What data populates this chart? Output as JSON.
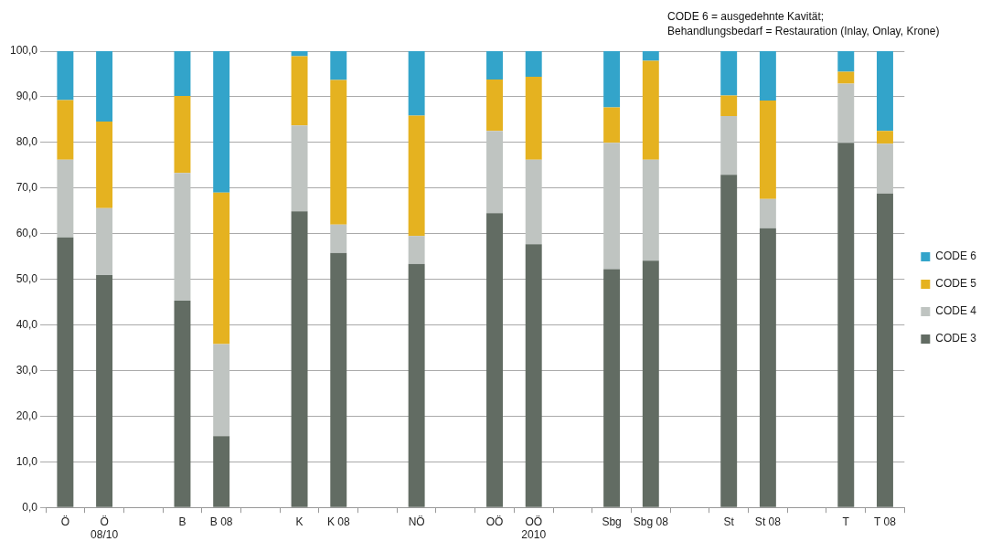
{
  "chart_data": {
    "type": "bar",
    "stacked": true,
    "categories": [
      "Ö",
      "Ö\n08/10",
      null,
      "B",
      "B 08",
      null,
      "K",
      "K 08",
      null,
      "NÖ",
      null,
      "OÖ",
      "OÖ\n2010",
      null,
      "Sbg",
      "Sbg 08",
      null,
      "St",
      "St 08",
      null,
      "T",
      "T 08"
    ],
    "series": [
      {
        "name": "CODE 3",
        "color": "#626c63",
        "values": [
          59.2,
          50.9,
          null,
          45.3,
          15.6,
          null,
          64.9,
          55.8,
          null,
          53.4,
          null,
          64.5,
          57.7,
          null,
          52.2,
          54.1,
          null,
          72.9,
          61.2,
          null,
          79.9,
          68.8
        ]
      },
      {
        "name": "CODE 4",
        "color": "#bfc4c1",
        "values": [
          17.0,
          14.7,
          null,
          28.0,
          20.2,
          null,
          18.8,
          6.2,
          null,
          6.1,
          null,
          18.0,
          18.5,
          null,
          27.7,
          22.1,
          null,
          12.9,
          6.4,
          null,
          13.0,
          10.9
        ]
      },
      {
        "name": "CODE 5",
        "color": "#e5b220",
        "values": [
          13.1,
          19.0,
          null,
          16.9,
          33.2,
          null,
          15.2,
          31.7,
          null,
          26.4,
          null,
          11.3,
          18.2,
          null,
          7.8,
          21.7,
          null,
          4.5,
          21.6,
          null,
          2.6,
          2.8
        ]
      },
      {
        "name": "CODE 6",
        "color": "#33a4ca",
        "values": [
          10.7,
          15.4,
          null,
          9.8,
          31.0,
          null,
          1.1,
          6.3,
          null,
          14.1,
          null,
          6.2,
          5.6,
          null,
          12.3,
          2.1,
          null,
          9.7,
          10.8,
          null,
          4.5,
          17.5
        ]
      }
    ],
    "ylim": [
      0,
      100
    ],
    "yticks": [
      {
        "value": 0,
        "label": "0,0"
      },
      {
        "value": 10,
        "label": "10,0"
      },
      {
        "value": 20,
        "label": "20,0"
      },
      {
        "value": 30,
        "label": "30,0"
      },
      {
        "value": 40,
        "label": "40,0"
      },
      {
        "value": 50,
        "label": "50,0"
      },
      {
        "value": 60,
        "label": "60,0"
      },
      {
        "value": 70,
        "label": "70,0"
      },
      {
        "value": 80,
        "label": "80,0"
      },
      {
        "value": 90,
        "label": "90,0"
      },
      {
        "value": 100,
        "label": "100,0"
      }
    ],
    "grid": "y",
    "legend": "right",
    "annotations": [
      "CODE 6 = ausgedehnte Kavität;\nBehandlungsbedarf = Restauration (Inlay, Onlay, Krone)"
    ]
  }
}
